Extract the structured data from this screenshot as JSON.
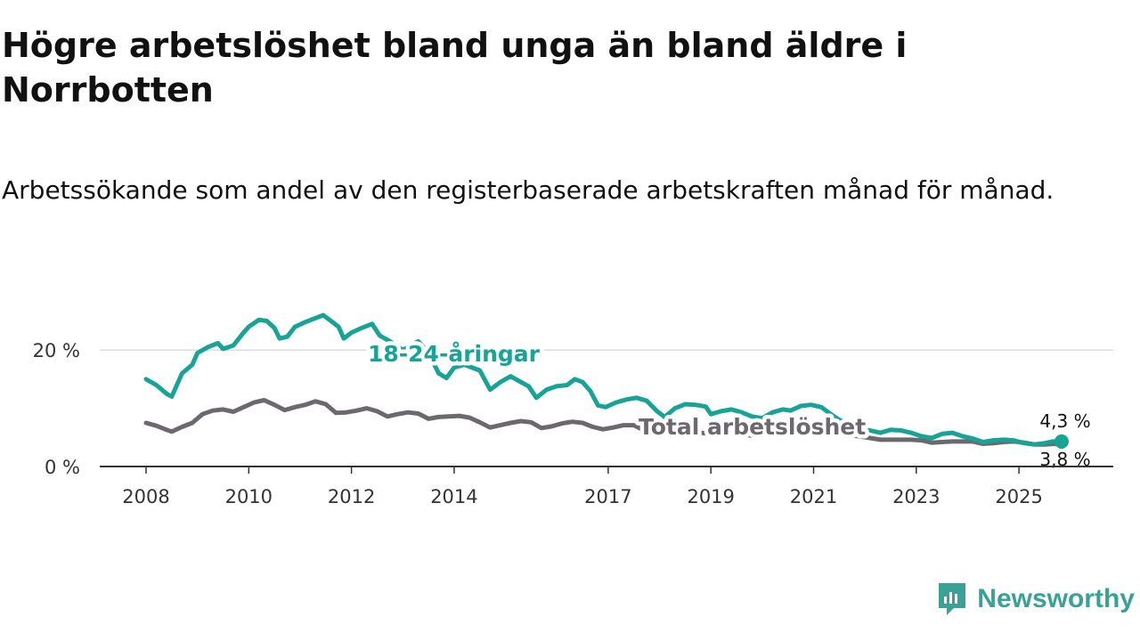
{
  "title": "Högre arbetslöshet bland unga än bland äldre i Norrbotten",
  "subtitle": "Arbetssökande som andel av den registerbaserade arbetskraften månad för månad.",
  "brand": {
    "name": "Newsworthy",
    "icon": "newsworthy-logo-icon",
    "color": "#3aa197"
  },
  "colors": {
    "youth": "#17a395",
    "total": "#6b696d",
    "grid": "#dddddd",
    "axis": "#333333"
  },
  "chart_data": {
    "type": "line",
    "title": "Högre arbetslöshet bland unga än bland äldre i Norrbotten",
    "ylabel": "",
    "xlabel": "",
    "xlim": [
      2008,
      2025.9
    ],
    "ylim": [
      0,
      26
    ],
    "yticks": [
      {
        "value": 0,
        "label": "0 %"
      },
      {
        "value": 20,
        "label": "20 %"
      }
    ],
    "xticks": [
      {
        "value": 2008,
        "label": "2008"
      },
      {
        "value": 2010,
        "label": "2010"
      },
      {
        "value": 2012,
        "label": "2012"
      },
      {
        "value": 2014,
        "label": "2014"
      },
      {
        "value": 2017,
        "label": "2017"
      },
      {
        "value": 2019,
        "label": "2019"
      },
      {
        "value": 2021,
        "label": "2021"
      },
      {
        "value": 2023,
        "label": "2023"
      },
      {
        "value": 2025,
        "label": "2025"
      }
    ],
    "series": [
      {
        "name": "18-24-åringar",
        "label": "18-24-åringar",
        "end_label": "4,3 %",
        "points": [
          [
            2008.0,
            15.0
          ],
          [
            2008.2,
            14.0
          ],
          [
            2008.4,
            12.5
          ],
          [
            2008.5,
            12.0
          ],
          [
            2008.7,
            16.0
          ],
          [
            2008.9,
            17.5
          ],
          [
            2009.0,
            19.5
          ],
          [
            2009.2,
            20.5
          ],
          [
            2009.4,
            21.2
          ],
          [
            2009.5,
            20.2
          ],
          [
            2009.7,
            20.8
          ],
          [
            2009.9,
            23.0
          ],
          [
            2010.0,
            24.0
          ],
          [
            2010.2,
            25.2
          ],
          [
            2010.35,
            25.0
          ],
          [
            2010.5,
            23.8
          ],
          [
            2010.6,
            22.0
          ],
          [
            2010.75,
            22.3
          ],
          [
            2010.9,
            24.0
          ],
          [
            2011.1,
            24.8
          ],
          [
            2011.3,
            25.5
          ],
          [
            2011.45,
            26.0
          ],
          [
            2011.6,
            25.0
          ],
          [
            2011.75,
            24.0
          ],
          [
            2011.85,
            22.0
          ],
          [
            2012.0,
            23.0
          ],
          [
            2012.2,
            23.8
          ],
          [
            2012.4,
            24.5
          ],
          [
            2012.55,
            22.5
          ],
          [
            2012.75,
            21.5
          ],
          [
            2013.0,
            20.0
          ],
          [
            2013.3,
            21.5
          ],
          [
            2013.5,
            19.5
          ],
          [
            2013.7,
            16.0
          ],
          [
            2013.85,
            15.2
          ],
          [
            2014.0,
            17.0
          ],
          [
            2014.2,
            17.5
          ],
          [
            2014.5,
            16.5
          ],
          [
            2014.7,
            13.2
          ],
          [
            2014.9,
            14.5
          ],
          [
            2015.1,
            15.5
          ],
          [
            2015.3,
            14.5
          ],
          [
            2015.45,
            13.8
          ],
          [
            2015.6,
            11.8
          ],
          [
            2015.8,
            13.2
          ],
          [
            2016.0,
            13.8
          ],
          [
            2016.2,
            14.0
          ],
          [
            2016.35,
            15.0
          ],
          [
            2016.5,
            14.5
          ],
          [
            2016.65,
            13.0
          ],
          [
            2016.8,
            10.5
          ],
          [
            2016.95,
            10.2
          ],
          [
            2017.15,
            11.0
          ],
          [
            2017.35,
            11.5
          ],
          [
            2017.55,
            11.8
          ],
          [
            2017.75,
            11.3
          ],
          [
            2017.95,
            9.5
          ],
          [
            2018.1,
            8.5
          ],
          [
            2018.3,
            10.0
          ],
          [
            2018.5,
            10.7
          ],
          [
            2018.7,
            10.6
          ],
          [
            2018.9,
            10.3
          ],
          [
            2019.0,
            9.0
          ],
          [
            2019.2,
            9.5
          ],
          [
            2019.4,
            9.8
          ],
          [
            2019.6,
            9.3
          ],
          [
            2019.8,
            8.6
          ],
          [
            2020.0,
            8.3
          ],
          [
            2020.2,
            9.3
          ],
          [
            2020.4,
            9.8
          ],
          [
            2020.55,
            9.6
          ],
          [
            2020.75,
            10.4
          ],
          [
            2020.95,
            10.6
          ],
          [
            2021.15,
            10.2
          ],
          [
            2021.3,
            9.2
          ],
          [
            2021.5,
            8.0
          ],
          [
            2021.7,
            7.2
          ],
          [
            2021.9,
            6.6
          ],
          [
            2022.1,
            6.2
          ],
          [
            2022.3,
            5.8
          ],
          [
            2022.5,
            6.3
          ],
          [
            2022.7,
            6.2
          ],
          [
            2022.9,
            5.8
          ],
          [
            2023.1,
            5.2
          ],
          [
            2023.3,
            4.9
          ],
          [
            2023.5,
            5.6
          ],
          [
            2023.7,
            5.8
          ],
          [
            2023.9,
            5.2
          ],
          [
            2024.1,
            4.8
          ],
          [
            2024.3,
            4.2
          ],
          [
            2024.5,
            4.5
          ],
          [
            2024.7,
            4.6
          ],
          [
            2024.9,
            4.5
          ],
          [
            2025.1,
            4.0
          ],
          [
            2025.3,
            3.8
          ],
          [
            2025.5,
            4.0
          ],
          [
            2025.65,
            4.3
          ],
          [
            2025.83,
            4.3
          ]
        ]
      },
      {
        "name": "Total arbetslöshet",
        "label": "Total arbetslöshet",
        "end_label": "3,8 %",
        "points": [
          [
            2008.0,
            7.5
          ],
          [
            2008.2,
            7.0
          ],
          [
            2008.4,
            6.3
          ],
          [
            2008.5,
            6.0
          ],
          [
            2008.7,
            6.8
          ],
          [
            2008.9,
            7.5
          ],
          [
            2009.1,
            9.0
          ],
          [
            2009.3,
            9.6
          ],
          [
            2009.5,
            9.8
          ],
          [
            2009.7,
            9.4
          ],
          [
            2009.9,
            10.2
          ],
          [
            2010.1,
            11.0
          ],
          [
            2010.3,
            11.4
          ],
          [
            2010.5,
            10.6
          ],
          [
            2010.7,
            9.7
          ],
          [
            2010.9,
            10.2
          ],
          [
            2011.1,
            10.6
          ],
          [
            2011.3,
            11.2
          ],
          [
            2011.5,
            10.7
          ],
          [
            2011.7,
            9.2
          ],
          [
            2011.9,
            9.3
          ],
          [
            2012.1,
            9.6
          ],
          [
            2012.3,
            10.0
          ],
          [
            2012.5,
            9.5
          ],
          [
            2012.7,
            8.6
          ],
          [
            2012.9,
            9.0
          ],
          [
            2013.1,
            9.3
          ],
          [
            2013.3,
            9.1
          ],
          [
            2013.5,
            8.2
          ],
          [
            2013.7,
            8.5
          ],
          [
            2013.9,
            8.6
          ],
          [
            2014.1,
            8.7
          ],
          [
            2014.3,
            8.4
          ],
          [
            2014.5,
            7.6
          ],
          [
            2014.7,
            6.7
          ],
          [
            2014.9,
            7.1
          ],
          [
            2015.1,
            7.5
          ],
          [
            2015.3,
            7.8
          ],
          [
            2015.5,
            7.6
          ],
          [
            2015.7,
            6.6
          ],
          [
            2015.9,
            6.9
          ],
          [
            2016.1,
            7.4
          ],
          [
            2016.3,
            7.7
          ],
          [
            2016.5,
            7.5
          ],
          [
            2016.7,
            6.8
          ],
          [
            2016.9,
            6.4
          ],
          [
            2017.1,
            6.7
          ],
          [
            2017.3,
            7.1
          ],
          [
            2017.5,
            7.1
          ],
          [
            2017.7,
            6.2
          ],
          [
            2017.9,
            6.0
          ],
          [
            2018.3,
            5.8
          ],
          [
            2018.7,
            5.9
          ],
          [
            2019.0,
            5.6
          ],
          [
            2019.4,
            5.7
          ],
          [
            2019.8,
            5.3
          ],
          [
            2020.2,
            5.9
          ],
          [
            2020.6,
            6.0
          ],
          [
            2021.0,
            5.9
          ],
          [
            2021.4,
            5.6
          ],
          [
            2021.8,
            5.3
          ],
          [
            2022.1,
            4.9
          ],
          [
            2022.3,
            4.6
          ],
          [
            2022.5,
            4.6
          ],
          [
            2022.7,
            4.6
          ],
          [
            2022.9,
            4.6
          ],
          [
            2023.1,
            4.5
          ],
          [
            2023.3,
            4.1
          ],
          [
            2023.5,
            4.2
          ],
          [
            2023.7,
            4.3
          ],
          [
            2023.9,
            4.3
          ],
          [
            2024.1,
            4.3
          ],
          [
            2024.3,
            3.9
          ],
          [
            2024.5,
            4.0
          ],
          [
            2024.7,
            4.2
          ],
          [
            2024.9,
            4.3
          ],
          [
            2025.1,
            4.1
          ],
          [
            2025.3,
            3.8
          ],
          [
            2025.5,
            3.8
          ],
          [
            2025.7,
            3.9
          ],
          [
            2025.83,
            3.8
          ]
        ]
      }
    ]
  }
}
